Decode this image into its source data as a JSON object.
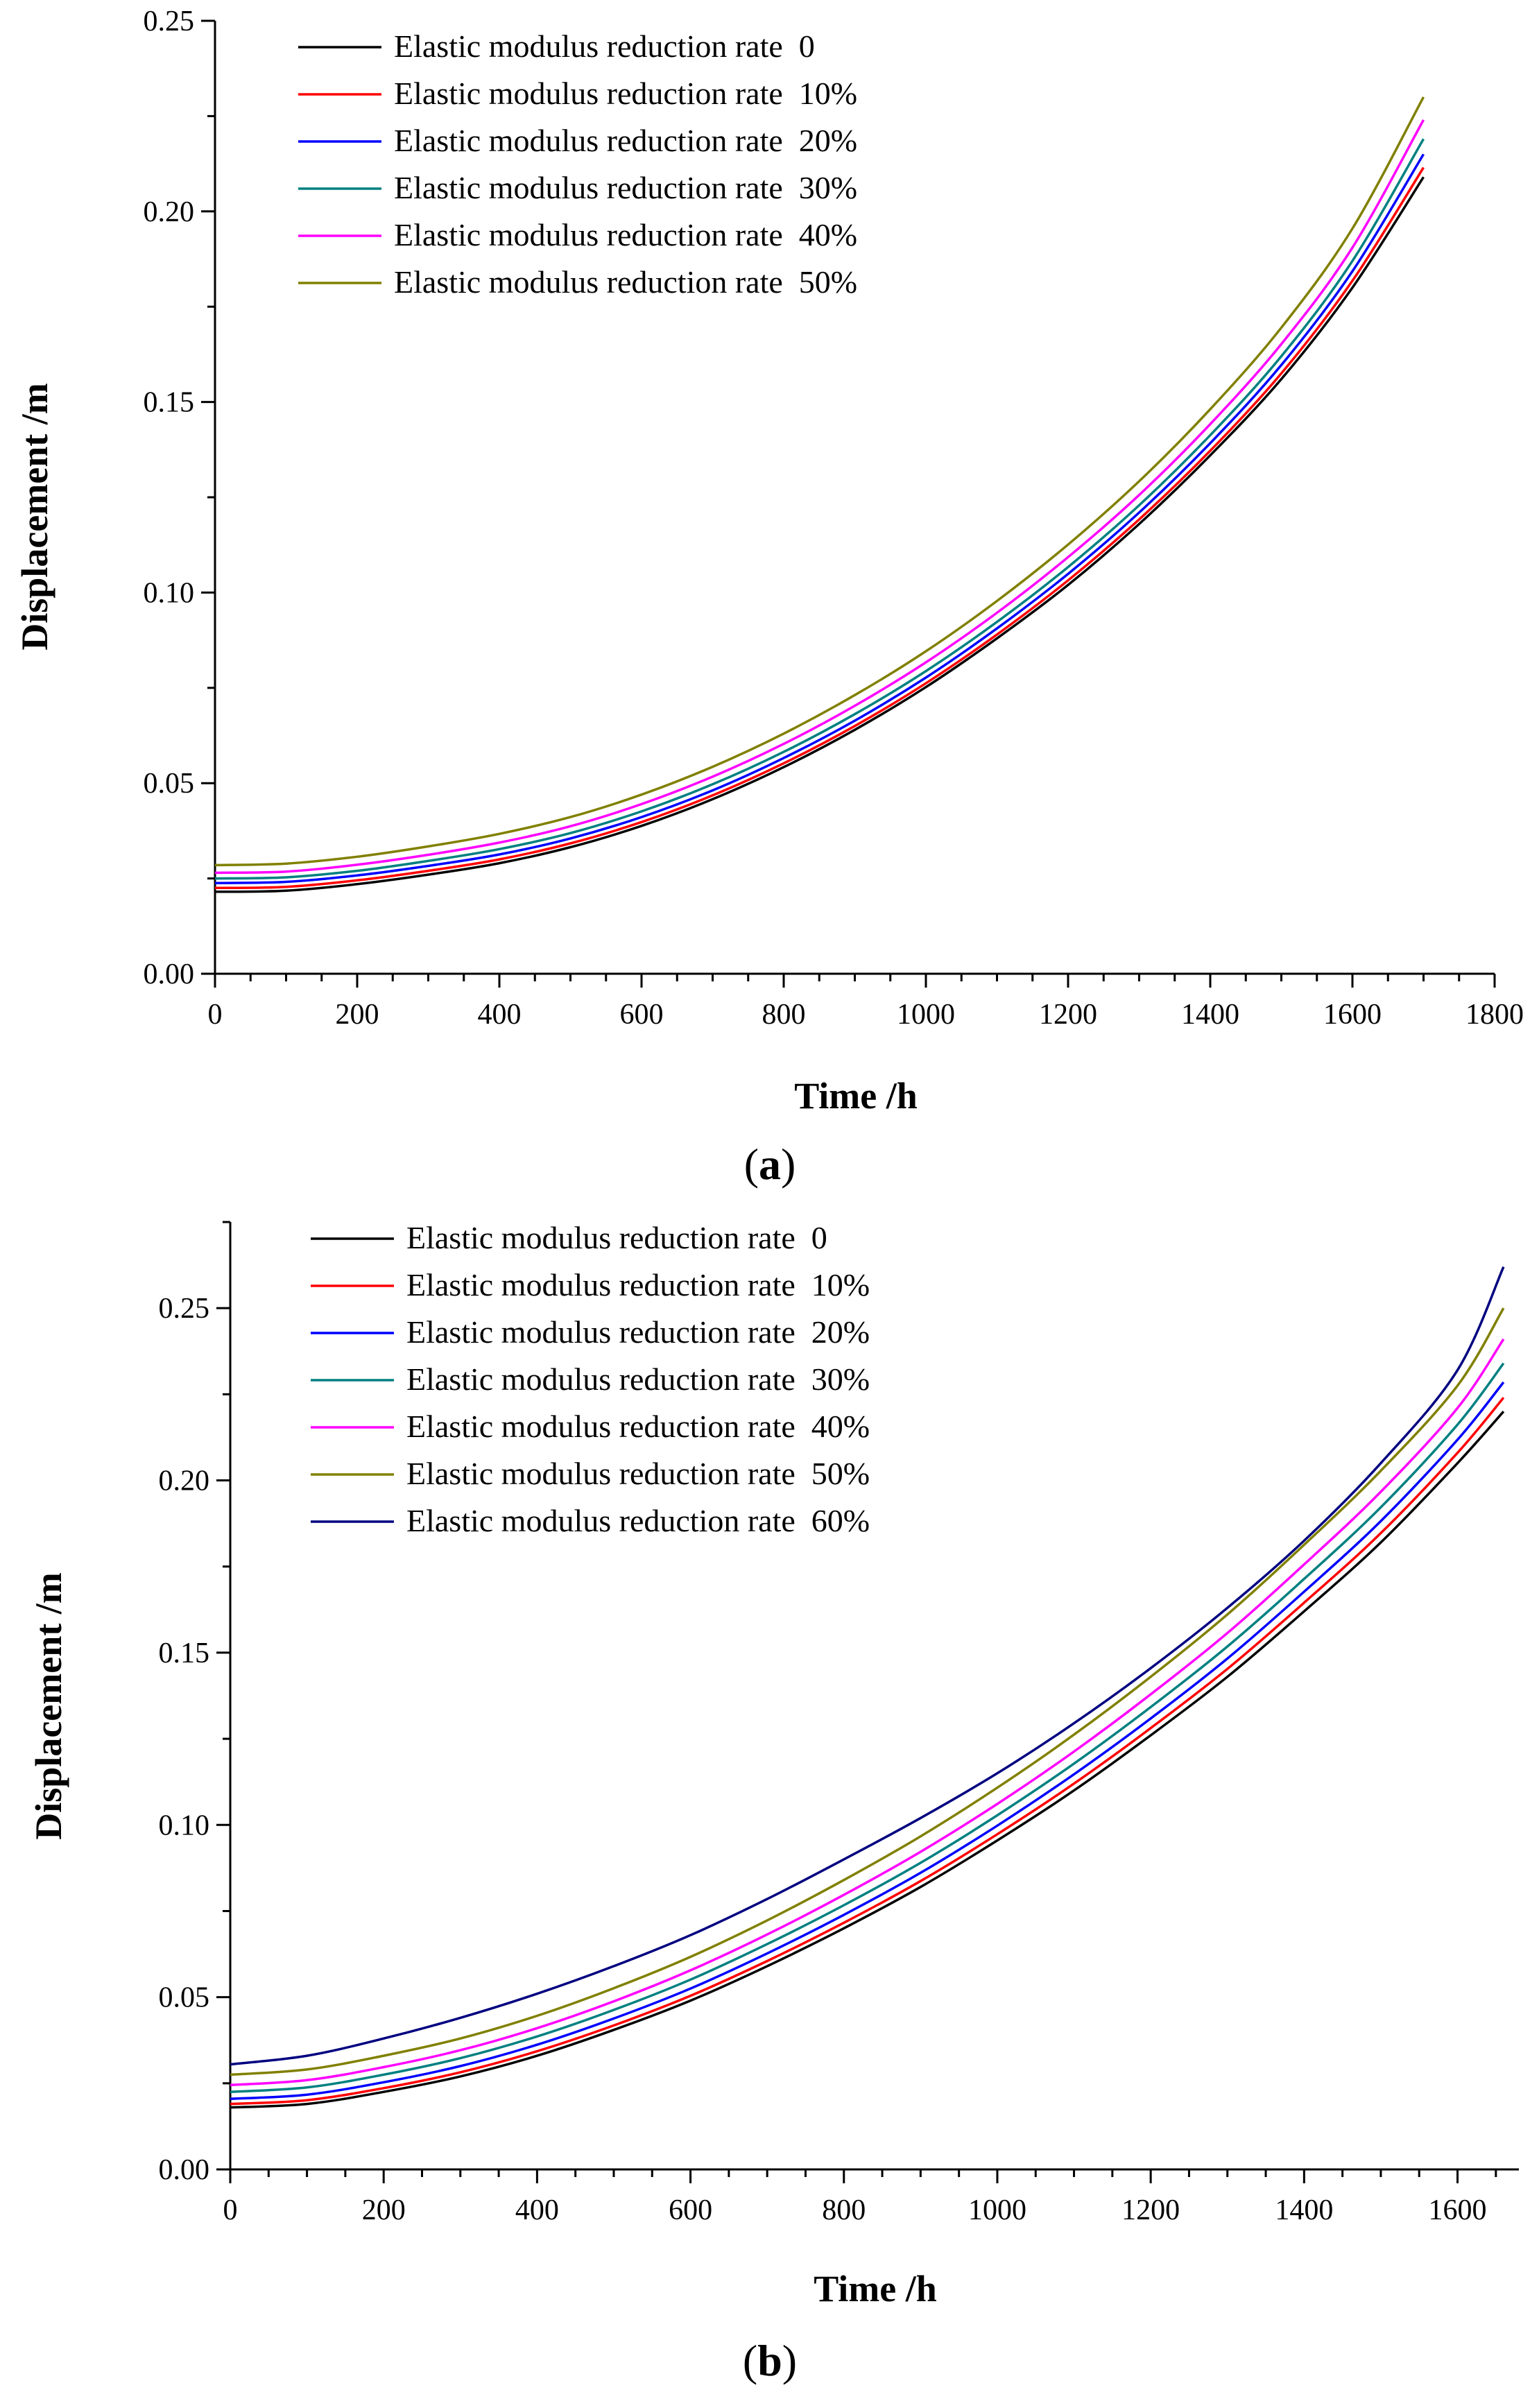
{
  "chart_data": [
    {
      "type": "line",
      "panel": "a",
      "xlabel": "Time /h",
      "ylabel": "Displacement /m",
      "xlim": [
        0,
        1800
      ],
      "ylim": [
        0,
        0.25
      ],
      "xticks": [
        0,
        200,
        400,
        600,
        800,
        1000,
        1200,
        1400,
        1600,
        1800
      ],
      "yticks": [
        "0.00",
        "0.05",
        "0.10",
        "0.15",
        "0.20",
        "0.25"
      ],
      "legend_position": "top-left",
      "x": [
        0,
        100,
        200,
        300,
        400,
        500,
        600,
        700,
        800,
        900,
        1000,
        1100,
        1200,
        1300,
        1400,
        1500,
        1600,
        1700
      ],
      "series": [
        {
          "name": "Elastic modulus reduction rate  0",
          "color": "#000000",
          "values": [
            0.0215,
            0.0218,
            0.0235,
            0.026,
            0.029,
            0.0332,
            0.0388,
            0.0458,
            0.0542,
            0.064,
            0.0752,
            0.088,
            0.102,
            0.118,
            0.136,
            0.156,
            0.18,
            0.209
          ]
        },
        {
          "name": "Elastic modulus reduction rate  10%",
          "color": "#ff0000",
          "values": [
            0.0225,
            0.0228,
            0.0245,
            0.027,
            0.03,
            0.0342,
            0.0398,
            0.0468,
            0.0552,
            0.065,
            0.0762,
            0.089,
            0.1032,
            0.1192,
            0.1372,
            0.1575,
            0.1818,
            0.2115
          ]
        },
        {
          "name": "Elastic modulus reduction rate  20%",
          "color": "#0000ff",
          "values": [
            0.0238,
            0.0241,
            0.0258,
            0.0283,
            0.0313,
            0.0355,
            0.0411,
            0.0481,
            0.0566,
            0.0664,
            0.0777,
            0.0906,
            0.1049,
            0.121,
            0.1392,
            0.1597,
            0.1843,
            0.215
          ]
        },
        {
          "name": "Elastic modulus reduction rate  30%",
          "color": "#008080",
          "values": [
            0.025,
            0.0253,
            0.027,
            0.0296,
            0.0327,
            0.0369,
            0.0426,
            0.0497,
            0.0582,
            0.0681,
            0.0794,
            0.0923,
            0.1067,
            0.1229,
            0.1413,
            0.162,
            0.187,
            0.219
          ]
        },
        {
          "name": "Elastic modulus reduction rate  40%",
          "color": "#ff00ff",
          "values": [
            0.0265,
            0.0268,
            0.0286,
            0.0312,
            0.0344,
            0.0387,
            0.0445,
            0.0517,
            0.0603,
            0.0703,
            0.0817,
            0.0947,
            0.1093,
            0.1256,
            0.1442,
            0.1652,
            0.1905,
            0.224
          ]
        },
        {
          "name": "Elastic modulus reduction rate  50%",
          "color": "#808000",
          "values": [
            0.0285,
            0.0289,
            0.0307,
            0.0334,
            0.0367,
            0.0411,
            0.047,
            0.0543,
            0.063,
            0.0731,
            0.0846,
            0.0978,
            0.1126,
            0.1292,
            0.1481,
            0.1695,
            0.1955,
            0.23
          ]
        }
      ]
    },
    {
      "type": "line",
      "panel": "b",
      "xlabel": "Time /h",
      "ylabel": "Displacement /m",
      "xlim": [
        0,
        1680
      ],
      "ylim": [
        0,
        0.275
      ],
      "xticks": [
        0,
        200,
        400,
        600,
        800,
        1000,
        1200,
        1400,
        1600
      ],
      "yticks": [
        "0.00",
        "0.05",
        "0.10",
        "0.15",
        "0.20",
        "0.25"
      ],
      "legend_position": "top-left",
      "x": [
        0,
        100,
        200,
        300,
        400,
        500,
        600,
        700,
        800,
        900,
        1000,
        1100,
        1200,
        1300,
        1400,
        1500,
        1600,
        1660
      ],
      "series": [
        {
          "name": "Elastic modulus reduction rate  0",
          "color": "#000000",
          "values": [
            0.018,
            0.019,
            0.0225,
            0.027,
            0.033,
            0.0405,
            0.049,
            0.059,
            0.07,
            0.082,
            0.0955,
            0.11,
            0.126,
            0.143,
            0.162,
            0.182,
            0.205,
            0.22
          ]
        },
        {
          "name": "Elastic modulus reduction rate  10%",
          "color": "#ff0000",
          "values": [
            0.019,
            0.0201,
            0.0236,
            0.0282,
            0.0343,
            0.0418,
            0.0504,
            0.0605,
            0.0716,
            0.0837,
            0.0973,
            0.112,
            0.1281,
            0.1453,
            0.1645,
            0.1847,
            0.208,
            0.224
          ]
        },
        {
          "name": "Elastic modulus reduction rate  20%",
          "color": "#0000ff",
          "values": [
            0.0205,
            0.0217,
            0.0253,
            0.03,
            0.0362,
            0.0438,
            0.0525,
            0.0627,
            0.0739,
            0.0861,
            0.0998,
            0.1147,
            0.1309,
            0.1483,
            0.1677,
            0.1882,
            0.2118,
            0.2285
          ]
        },
        {
          "name": "Elastic modulus reduction rate  30%",
          "color": "#008080",
          "values": [
            0.0225,
            0.0238,
            0.0275,
            0.0323,
            0.0386,
            0.0463,
            0.0551,
            0.0654,
            0.0767,
            0.089,
            0.1028,
            0.1178,
            0.1342,
            0.1518,
            0.1714,
            0.1922,
            0.2162,
            0.234
          ]
        },
        {
          "name": "Elastic modulus reduction rate  40%",
          "color": "#ff00ff",
          "values": [
            0.0245,
            0.0259,
            0.0297,
            0.0346,
            0.041,
            0.0488,
            0.0578,
            0.0682,
            0.0797,
            0.0922,
            0.1061,
            0.1213,
            0.1379,
            0.1557,
            0.1756,
            0.1967,
            0.221,
            0.241
          ]
        },
        {
          "name": "Elastic modulus reduction rate  50%",
          "color": "#808000",
          "values": [
            0.0275,
            0.029,
            0.033,
            0.038,
            0.0446,
            0.0526,
            0.0617,
            0.0723,
            0.084,
            0.0967,
            0.1108,
            0.1262,
            0.143,
            0.1611,
            0.1813,
            0.2028,
            0.2275,
            0.25
          ]
        },
        {
          "name": "Elastic modulus reduction rate  60%",
          "color": "#000080",
          "values": [
            0.0305,
            0.033,
            0.038,
            0.044,
            0.051,
            0.059,
            0.068,
            0.0785,
            0.09,
            0.102,
            0.115,
            0.1295,
            0.1455,
            0.163,
            0.1825,
            0.205,
            0.232,
            0.262
          ]
        }
      ]
    }
  ],
  "panel_labels": {
    "a": "(a)",
    "b": "(b)"
  },
  "panel_label_parts": {
    "a": {
      "open": "(",
      "letter": "a",
      "close": ")"
    },
    "b": {
      "open": "(",
      "letter": "b",
      "close": ")"
    }
  }
}
